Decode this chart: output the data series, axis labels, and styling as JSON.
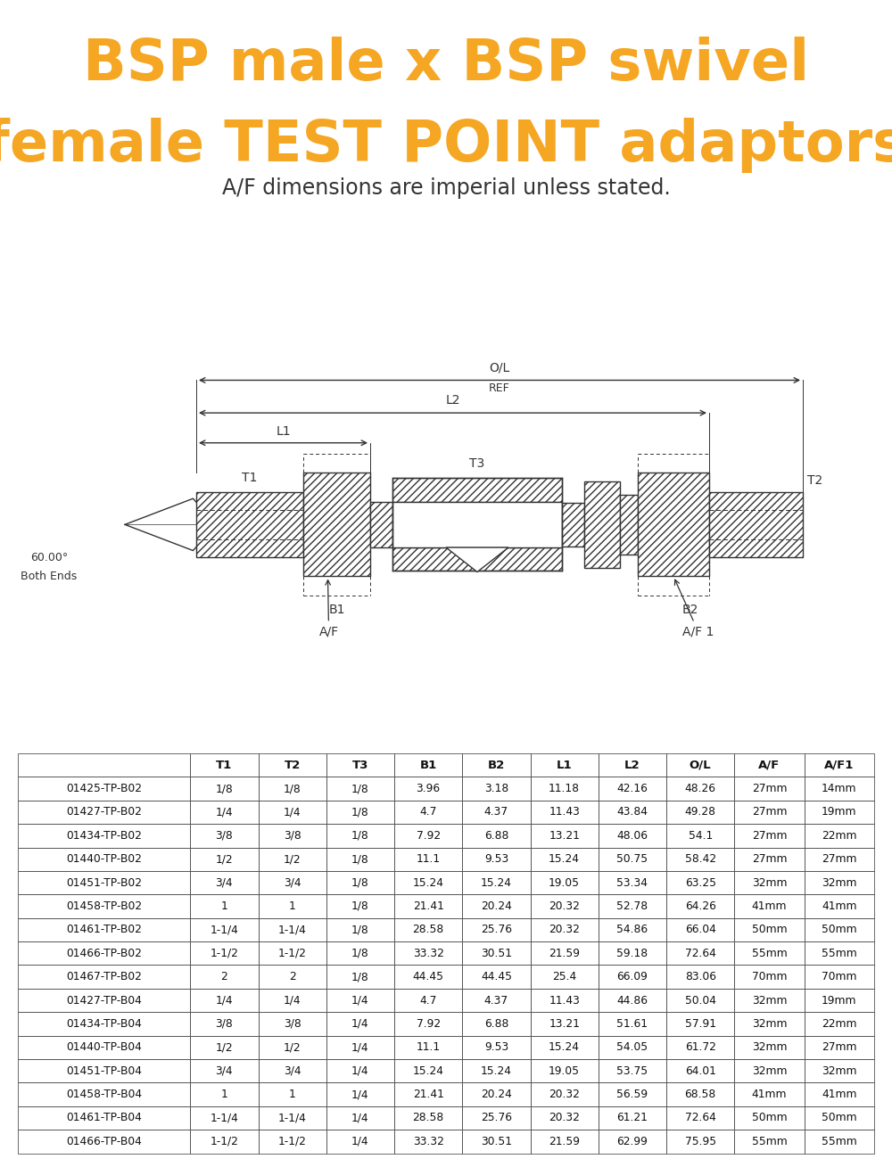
{
  "title_line1": "BSP male x BSP swivel",
  "title_line2": "female TEST POINT adaptors",
  "subtitle": "A/F dimensions are imperial unless stated.",
  "title_color": "#F5A623",
  "subtitle_color": "#333333",
  "bg_color": "#FFFFFF",
  "table_headers": [
    "",
    "T1",
    "T2",
    "T3",
    "B1",
    "B2",
    "L1",
    "L2",
    "O/L",
    "A/F",
    "A/F1"
  ],
  "table_rows": [
    [
      "01425-TP-B02",
      "1/8",
      "1/8",
      "1/8",
      "3.96",
      "3.18",
      "11.18",
      "42.16",
      "48.26",
      "27mm",
      "14mm"
    ],
    [
      "01427-TP-B02",
      "1/4",
      "1/4",
      "1/8",
      "4.7",
      "4.37",
      "11.43",
      "43.84",
      "49.28",
      "27mm",
      "19mm"
    ],
    [
      "01434-TP-B02",
      "3/8",
      "3/8",
      "1/8",
      "7.92",
      "6.88",
      "13.21",
      "48.06",
      "54.1",
      "27mm",
      "22mm"
    ],
    [
      "01440-TP-B02",
      "1/2",
      "1/2",
      "1/8",
      "11.1",
      "9.53",
      "15.24",
      "50.75",
      "58.42",
      "27mm",
      "27mm"
    ],
    [
      "01451-TP-B02",
      "3/4",
      "3/4",
      "1/8",
      "15.24",
      "15.24",
      "19.05",
      "53.34",
      "63.25",
      "32mm",
      "32mm"
    ],
    [
      "01458-TP-B02",
      "1",
      "1",
      "1/8",
      "21.41",
      "20.24",
      "20.32",
      "52.78",
      "64.26",
      "41mm",
      "41mm"
    ],
    [
      "01461-TP-B02",
      "1-1/4",
      "1-1/4",
      "1/8",
      "28.58",
      "25.76",
      "20.32",
      "54.86",
      "66.04",
      "50mm",
      "50mm"
    ],
    [
      "01466-TP-B02",
      "1-1/2",
      "1-1/2",
      "1/8",
      "33.32",
      "30.51",
      "21.59",
      "59.18",
      "72.64",
      "55mm",
      "55mm"
    ],
    [
      "01467-TP-B02",
      "2",
      "2",
      "1/8",
      "44.45",
      "44.45",
      "25.4",
      "66.09",
      "83.06",
      "70mm",
      "70mm"
    ],
    [
      "01427-TP-B04",
      "1/4",
      "1/4",
      "1/4",
      "4.7",
      "4.37",
      "11.43",
      "44.86",
      "50.04",
      "32mm",
      "19mm"
    ],
    [
      "01434-TP-B04",
      "3/8",
      "3/8",
      "1/4",
      "7.92",
      "6.88",
      "13.21",
      "51.61",
      "57.91",
      "32mm",
      "22mm"
    ],
    [
      "01440-TP-B04",
      "1/2",
      "1/2",
      "1/4",
      "11.1",
      "9.53",
      "15.24",
      "54.05",
      "61.72",
      "32mm",
      "27mm"
    ],
    [
      "01451-TP-B04",
      "3/4",
      "3/4",
      "1/4",
      "15.24",
      "15.24",
      "19.05",
      "53.75",
      "64.01",
      "32mm",
      "32mm"
    ],
    [
      "01458-TP-B04",
      "1",
      "1",
      "1/4",
      "21.41",
      "20.24",
      "20.32",
      "56.59",
      "68.58",
      "41mm",
      "41mm"
    ],
    [
      "01461-TP-B04",
      "1-1/4",
      "1-1/4",
      "1/4",
      "28.58",
      "25.76",
      "20.32",
      "61.21",
      "72.64",
      "50mm",
      "50mm"
    ],
    [
      "01466-TP-B04",
      "1-1/2",
      "1-1/2",
      "1/4",
      "33.32",
      "30.51",
      "21.59",
      "62.99",
      "75.95",
      "55mm",
      "55mm"
    ]
  ]
}
